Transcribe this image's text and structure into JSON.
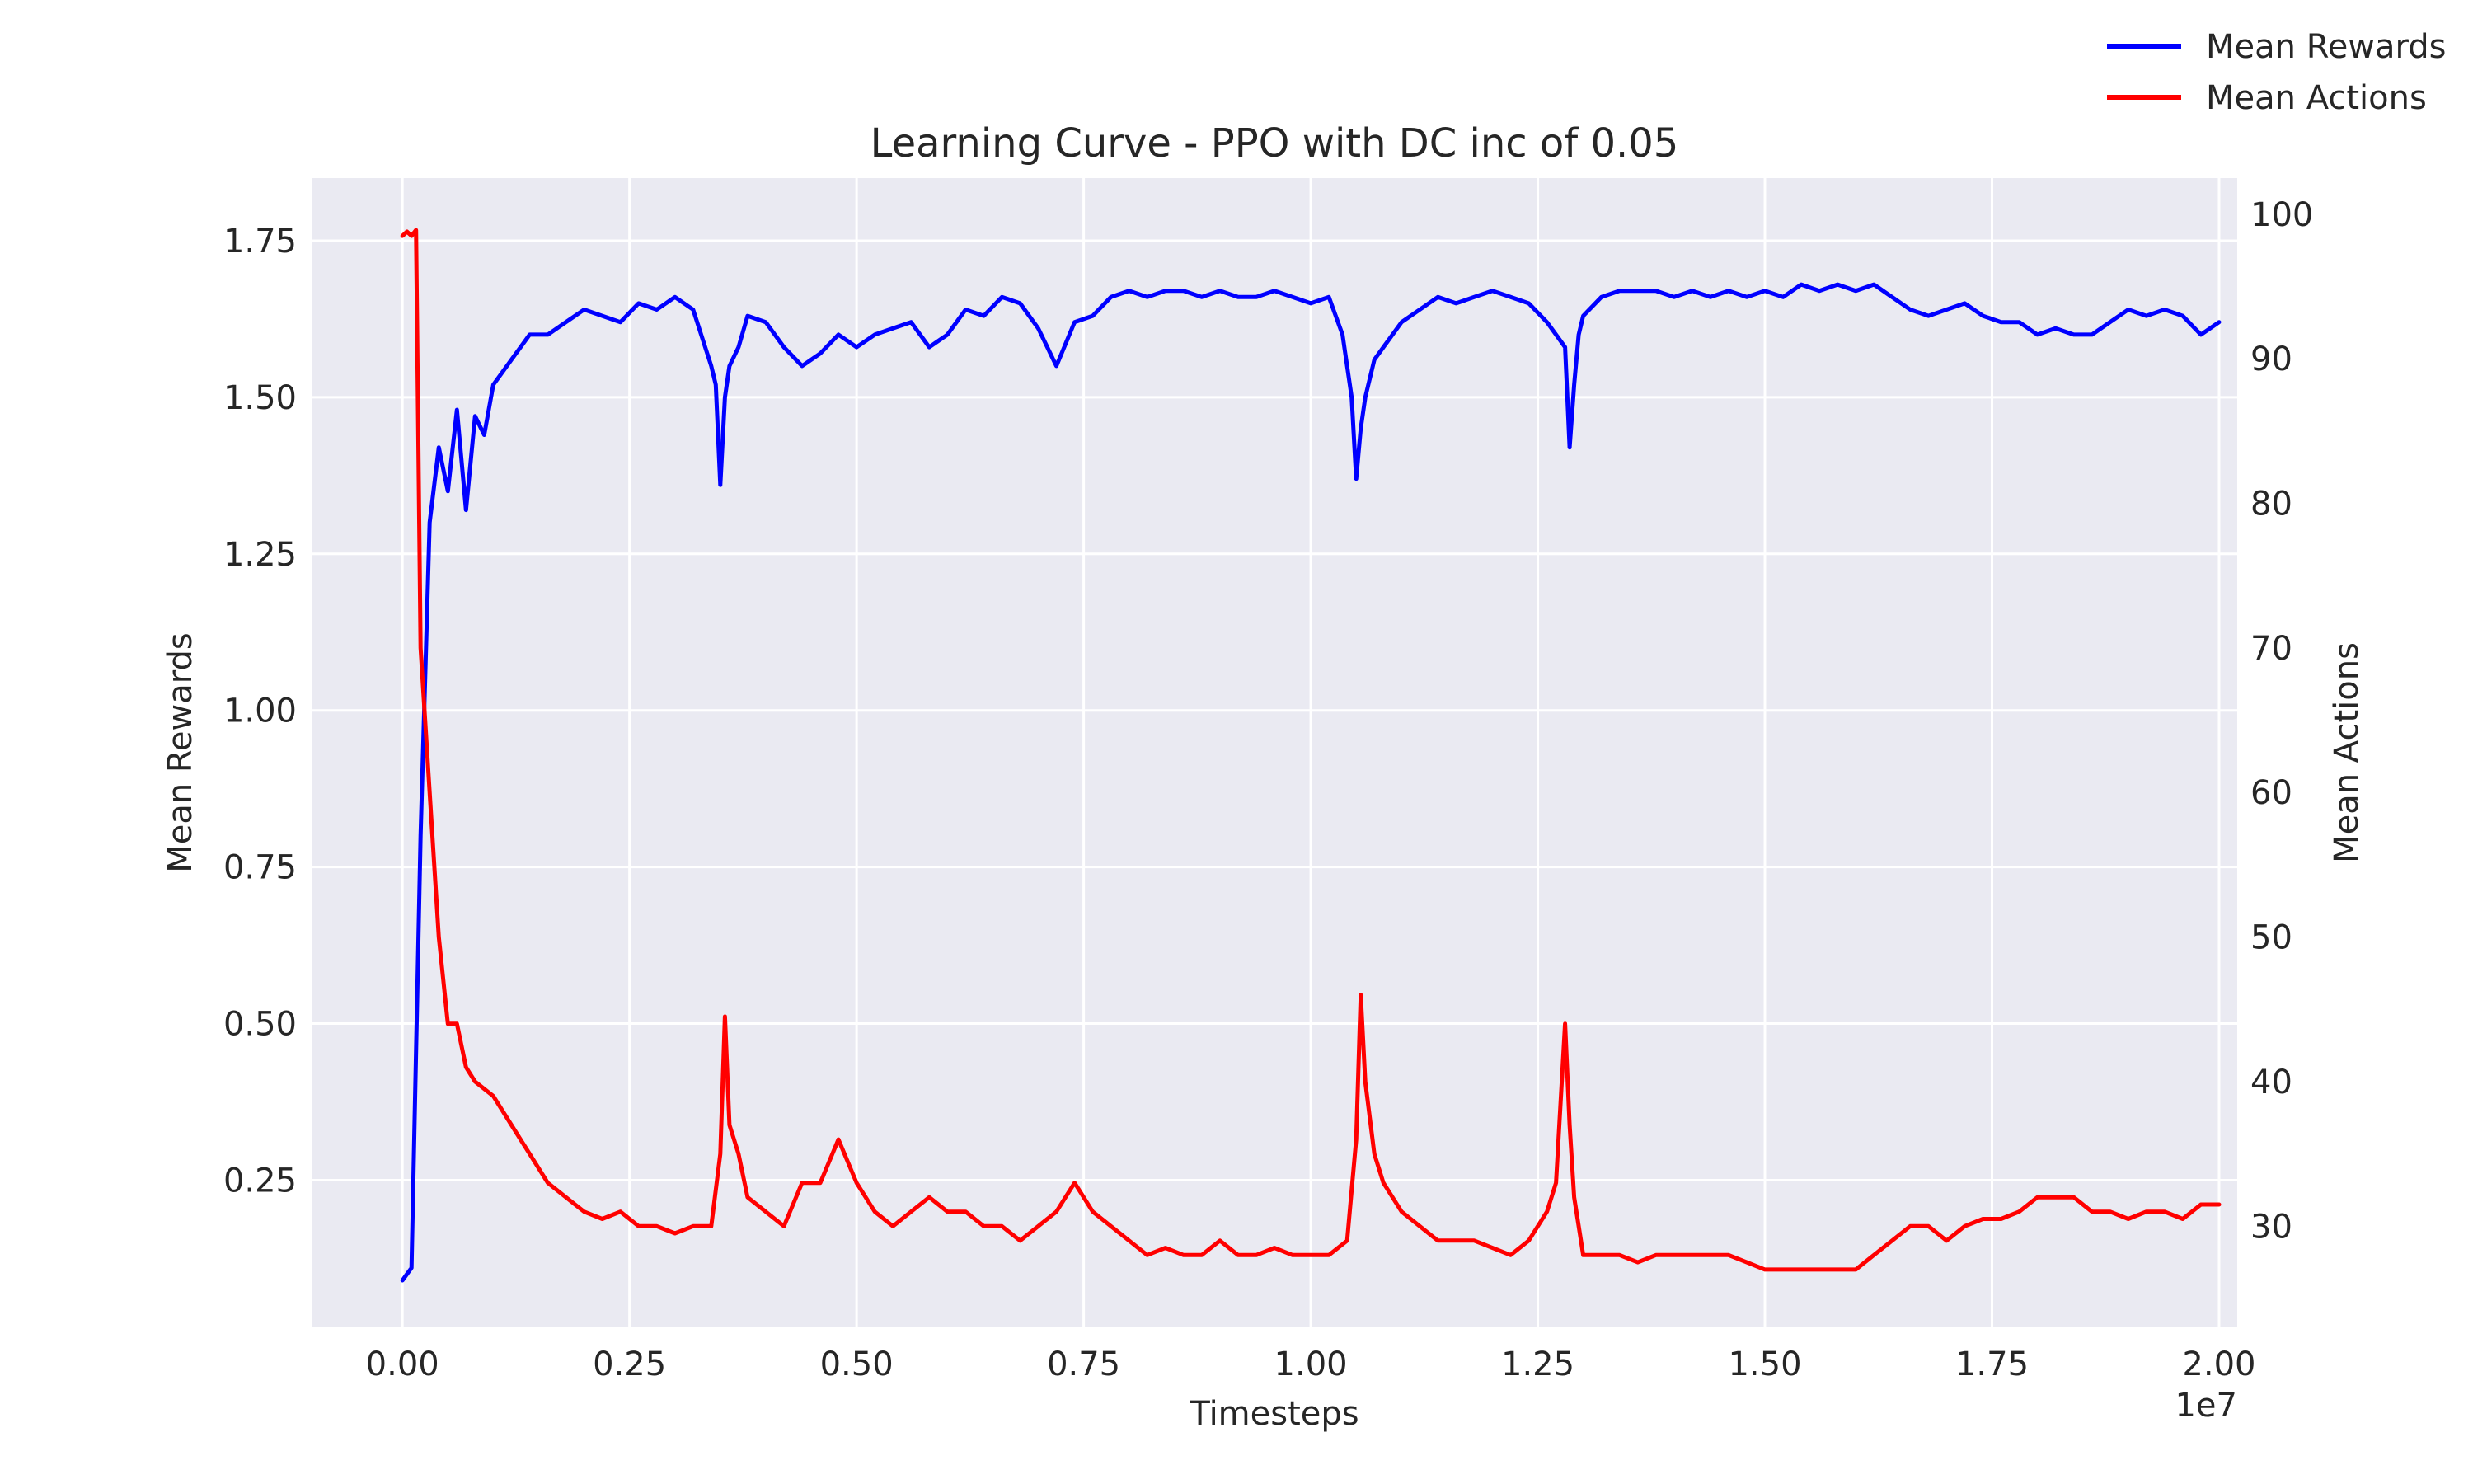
{
  "chart_data": {
    "type": "line",
    "title": "Learning Curve - PPO with DC inc of 0.05",
    "xlabel": "Timesteps",
    "x_offset_label": "1e7",
    "ylabel_left": "Mean Rewards",
    "ylabel_right": "Mean Actions",
    "xlim": [
      -0.1,
      2.02
    ],
    "ylim_left": [
      0.015,
      1.85
    ],
    "ylim_right": [
      23,
      102.5
    ],
    "x_ticks": [
      0.0,
      0.25,
      0.5,
      0.75,
      1.0,
      1.25,
      1.5,
      1.75,
      2.0
    ],
    "x_tick_labels": [
      "0.00",
      "0.25",
      "0.50",
      "0.75",
      "1.00",
      "1.25",
      "1.50",
      "1.75",
      "2.00"
    ],
    "y_left_ticks": [
      0.25,
      0.5,
      0.75,
      1.0,
      1.25,
      1.5,
      1.75
    ],
    "y_left_tick_labels": [
      "0.25",
      "0.50",
      "0.75",
      "1.00",
      "1.25",
      "1.50",
      "1.75"
    ],
    "y_right_ticks": [
      30,
      40,
      50,
      60,
      70,
      80,
      90,
      100
    ],
    "y_right_tick_labels": [
      "30",
      "40",
      "50",
      "60",
      "70",
      "80",
      "90",
      "100"
    ],
    "grid": true,
    "legend_position": "top-right",
    "series": [
      {
        "name": "Mean Rewards",
        "axis": "left",
        "color": "#0000ff",
        "x": [
          0.0,
          0.005,
          0.01,
          0.02,
          0.03,
          0.04,
          0.05,
          0.06,
          0.07,
          0.08,
          0.09,
          0.1,
          0.12,
          0.14,
          0.16,
          0.18,
          0.2,
          0.22,
          0.24,
          0.26,
          0.28,
          0.3,
          0.32,
          0.34,
          0.345,
          0.35,
          0.355,
          0.36,
          0.37,
          0.38,
          0.4,
          0.42,
          0.44,
          0.46,
          0.48,
          0.5,
          0.52,
          0.54,
          0.56,
          0.58,
          0.6,
          0.62,
          0.64,
          0.66,
          0.68,
          0.7,
          0.72,
          0.74,
          0.76,
          0.78,
          0.8,
          0.82,
          0.84,
          0.86,
          0.88,
          0.9,
          0.92,
          0.94,
          0.96,
          0.98,
          1.0,
          1.02,
          1.035,
          1.045,
          1.05,
          1.055,
          1.06,
          1.07,
          1.08,
          1.1,
          1.12,
          1.14,
          1.16,
          1.18,
          1.2,
          1.22,
          1.24,
          1.26,
          1.27,
          1.28,
          1.285,
          1.29,
          1.295,
          1.3,
          1.32,
          1.34,
          1.36,
          1.38,
          1.4,
          1.42,
          1.44,
          1.46,
          1.48,
          1.5,
          1.52,
          1.54,
          1.56,
          1.58,
          1.6,
          1.62,
          1.64,
          1.66,
          1.68,
          1.7,
          1.72,
          1.74,
          1.76,
          1.78,
          1.8,
          1.82,
          1.84,
          1.86,
          1.88,
          1.9,
          1.92,
          1.94,
          1.96,
          1.98,
          2.0
        ],
        "values": [
          0.09,
          0.1,
          0.11,
          0.8,
          1.3,
          1.42,
          1.35,
          1.48,
          1.32,
          1.47,
          1.44,
          1.52,
          1.56,
          1.6,
          1.6,
          1.62,
          1.64,
          1.63,
          1.62,
          1.65,
          1.64,
          1.66,
          1.64,
          1.55,
          1.52,
          1.36,
          1.5,
          1.55,
          1.58,
          1.63,
          1.62,
          1.58,
          1.55,
          1.57,
          1.6,
          1.58,
          1.6,
          1.61,
          1.62,
          1.58,
          1.6,
          1.64,
          1.63,
          1.66,
          1.65,
          1.61,
          1.55,
          1.62,
          1.63,
          1.66,
          1.67,
          1.66,
          1.67,
          1.67,
          1.66,
          1.67,
          1.66,
          1.66,
          1.67,
          1.66,
          1.65,
          1.66,
          1.6,
          1.5,
          1.37,
          1.45,
          1.5,
          1.56,
          1.58,
          1.62,
          1.64,
          1.66,
          1.65,
          1.66,
          1.67,
          1.66,
          1.65,
          1.62,
          1.6,
          1.58,
          1.42,
          1.52,
          1.6,
          1.63,
          1.66,
          1.67,
          1.67,
          1.67,
          1.66,
          1.67,
          1.66,
          1.67,
          1.66,
          1.67,
          1.66,
          1.68,
          1.67,
          1.68,
          1.67,
          1.68,
          1.66,
          1.64,
          1.63,
          1.64,
          1.65,
          1.63,
          1.62,
          1.62,
          1.6,
          1.61,
          1.6,
          1.6,
          1.62,
          1.64,
          1.63,
          1.64,
          1.63,
          1.6,
          1.62
        ]
      },
      {
        "name": "Mean Actions",
        "axis": "right",
        "color": "#ff0000",
        "x": [
          0.0,
          0.005,
          0.01,
          0.015,
          0.02,
          0.03,
          0.04,
          0.05,
          0.06,
          0.07,
          0.08,
          0.1,
          0.12,
          0.14,
          0.16,
          0.18,
          0.2,
          0.22,
          0.24,
          0.26,
          0.28,
          0.3,
          0.32,
          0.34,
          0.35,
          0.355,
          0.36,
          0.37,
          0.38,
          0.4,
          0.42,
          0.44,
          0.46,
          0.48,
          0.5,
          0.52,
          0.54,
          0.56,
          0.58,
          0.6,
          0.62,
          0.64,
          0.66,
          0.68,
          0.7,
          0.72,
          0.74,
          0.76,
          0.78,
          0.8,
          0.82,
          0.84,
          0.86,
          0.88,
          0.9,
          0.92,
          0.94,
          0.96,
          0.98,
          1.0,
          1.02,
          1.04,
          1.05,
          1.055,
          1.06,
          1.07,
          1.08,
          1.1,
          1.12,
          1.14,
          1.16,
          1.18,
          1.2,
          1.22,
          1.24,
          1.26,
          1.27,
          1.28,
          1.285,
          1.29,
          1.3,
          1.32,
          1.34,
          1.36,
          1.38,
          1.4,
          1.42,
          1.44,
          1.46,
          1.48,
          1.5,
          1.52,
          1.54,
          1.56,
          1.58,
          1.6,
          1.62,
          1.64,
          1.66,
          1.68,
          1.7,
          1.72,
          1.74,
          1.76,
          1.78,
          1.8,
          1.82,
          1.84,
          1.86,
          1.88,
          1.9,
          1.92,
          1.94,
          1.96,
          1.98,
          2.0
        ],
        "values": [
          98.5,
          98.8,
          98.5,
          98.9,
          70,
          60,
          50,
          44,
          44,
          41,
          40,
          39,
          37,
          35,
          33,
          32,
          31,
          30.5,
          31,
          30,
          30,
          29.5,
          30,
          30,
          35,
          44.5,
          37,
          35,
          32,
          31,
          30,
          33,
          33,
          36,
          33,
          31,
          30,
          31,
          32,
          31,
          31,
          30,
          30,
          29,
          30,
          31,
          33,
          31,
          30,
          29,
          28,
          28.5,
          28,
          28,
          29,
          28,
          28,
          28.5,
          28,
          28,
          28,
          29,
          36,
          46,
          40,
          35,
          33,
          31,
          30,
          29,
          29,
          29,
          28.5,
          28,
          29,
          31,
          33,
          44,
          37,
          32,
          28,
          28,
          28,
          27.5,
          28,
          28,
          28,
          28,
          28,
          27.5,
          27,
          27,
          27,
          27,
          27,
          27,
          28,
          29,
          30,
          30,
          29,
          30,
          30.5,
          30.5,
          31,
          32,
          32,
          32,
          31,
          31,
          30.5,
          31,
          31,
          30.5,
          31.5,
          31.5
        ]
      }
    ]
  }
}
